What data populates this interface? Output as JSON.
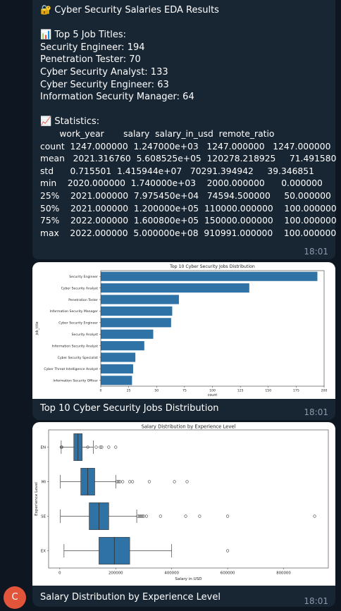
{
  "message1": {
    "title": "🔐 Cyber Security Salaries EDA Results",
    "top5_heading": "📊 Top 5 Job Titles:",
    "top5": [
      "Security Engineer: 194",
      "Penetration Tester: 70",
      "Cyber Security Analyst: 133",
      "Cyber Security Engineer: 63",
      "Information Security Manager: 64"
    ],
    "stats_heading": "📈 Statistics:",
    "stats_lines": [
      "       work_year       salary  salary_in_usd  remote_ratio",
      "count  1247.000000  1.247000e+03   1247.000000   1247.000000",
      "mean   2021.316760  5.608525e+05  120278.218925     71.491580",
      "std      0.715501  1.415944e+07   70291.394942     39.346851",
      "min    2020.000000  1.740000e+03    2000.000000      0.000000",
      "25%    2021.000000  7.975450e+04   74594.500000     50.000000",
      "50%    2021.000000  1.200000e+05  110000.000000    100.000000",
      "75%    2022.000000  1.600800e+05  150000.000000    100.000000",
      "max    2022.000000  5.000000e+08  910991.000000    100.000000"
    ],
    "time": "18:01"
  },
  "message2": {
    "caption": "Top 10 Cyber Security Jobs Distribution",
    "time": "18:01"
  },
  "message3": {
    "caption": "Salary Distribution by Experience Level",
    "time": "18:01"
  },
  "avatar": {
    "initial": "C",
    "color": "#e2553b"
  },
  "chart_data": [
    {
      "type": "bar",
      "orientation": "horizontal",
      "title": "Top 10 Cyber Security Jobs Distribution",
      "xlabel": "count",
      "ylabel": "job_title",
      "categories": [
        "Security Engineer",
        "Cyber Security Analyst",
        "Penetration Tester",
        "Information Security Manager",
        "Cyber Security Engineer",
        "Security Analyst",
        "Information Security Analyst",
        "Cyber Security Specialist",
        "Cyber Threat Intelligence Analyst",
        "Information Security Officer"
      ],
      "values": [
        194,
        133,
        70,
        64,
        63,
        47,
        39,
        31,
        29,
        28
      ],
      "xticks": [
        0,
        25,
        50,
        75,
        100,
        125,
        150,
        175,
        200
      ],
      "xlim": [
        0,
        200
      ],
      "color": "#2f73a6"
    },
    {
      "type": "box",
      "title": "Salary Distribution by Experience Level",
      "xlabel": "Salary in USD",
      "ylabel": "Experience Level",
      "categories": [
        "EN",
        "MI",
        "SE",
        "EX"
      ],
      "boxes": [
        {
          "label": "EN",
          "whislo": 5000,
          "q1": 50000,
          "med": 65000,
          "q3": 80000,
          "whishi": 120000,
          "fliers": [
            5000,
            7000,
            100000,
            130000,
            145000,
            150000,
            175000,
            200000
          ]
        },
        {
          "label": "MI",
          "whislo": 2000,
          "q1": 75000,
          "med": 100000,
          "q3": 125000,
          "whishi": 200000,
          "fliers": [
            205000,
            210000,
            215000,
            225000,
            250000,
            260000,
            320000,
            410000,
            455000
          ]
        },
        {
          "label": "SE",
          "whislo": 2000,
          "q1": 105000,
          "med": 140000,
          "q3": 175000,
          "whishi": 275000,
          "fliers": [
            280000,
            285000,
            290000,
            295000,
            300000,
            310000,
            360000,
            450000,
            500000,
            600000,
            910991
          ]
        },
        {
          "label": "EX",
          "whislo": 15000,
          "q1": 140000,
          "med": 195000,
          "q3": 250000,
          "whishi": 400000,
          "fliers": [
            600000
          ]
        }
      ],
      "xticks": [
        0,
        200000,
        400000,
        600000,
        800000
      ],
      "xlim": [
        -40000,
        960000
      ],
      "color": "#2f73a6"
    }
  ]
}
